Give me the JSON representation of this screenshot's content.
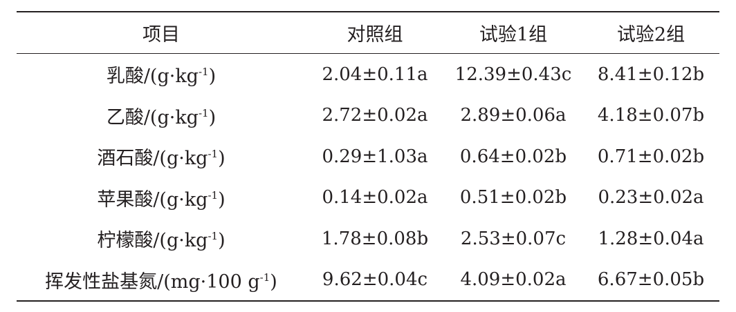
{
  "header": {
    "item": "项目",
    "control": "对照组",
    "test1": "试验1组",
    "test2": "试验2组"
  },
  "rows": [
    {
      "label": "乳酸/(g·kg",
      "sup": "-1",
      "close": ")",
      "control": "2.04±0.11a",
      "test1": "12.39±0.43c",
      "test2": "8.41±0.12b"
    },
    {
      "label": "乙酸/(g·kg",
      "sup": "-1",
      "close": ")",
      "control": "2.72±0.02a",
      "test1": "2.89±0.06a",
      "test2": "4.18±0.07b"
    },
    {
      "label": "酒石酸/(g·kg",
      "sup": "-1",
      "close": ")",
      "control": "0.29±1.03a",
      "test1": "0.64±0.02b",
      "test2": "0.71±0.02b"
    },
    {
      "label": "苹果酸/(g·kg",
      "sup": "-1",
      "close": ")",
      "control": "0.14±0.02a",
      "test1": "0.51±0.02b",
      "test2": "0.23±0.02a"
    },
    {
      "label": "柠檬酸/(g·kg",
      "sup": "-1",
      "close": ")",
      "control": "1.78±0.08b",
      "test1": "2.53±0.07c",
      "test2": "1.28±0.04a"
    },
    {
      "label": "挥发性盐基氮/(mg·100 g",
      "sup": "-1",
      "close": ")",
      "control": "9.62±0.04c",
      "test1": "4.09±0.02a",
      "test2": "6.67±0.05b"
    }
  ]
}
